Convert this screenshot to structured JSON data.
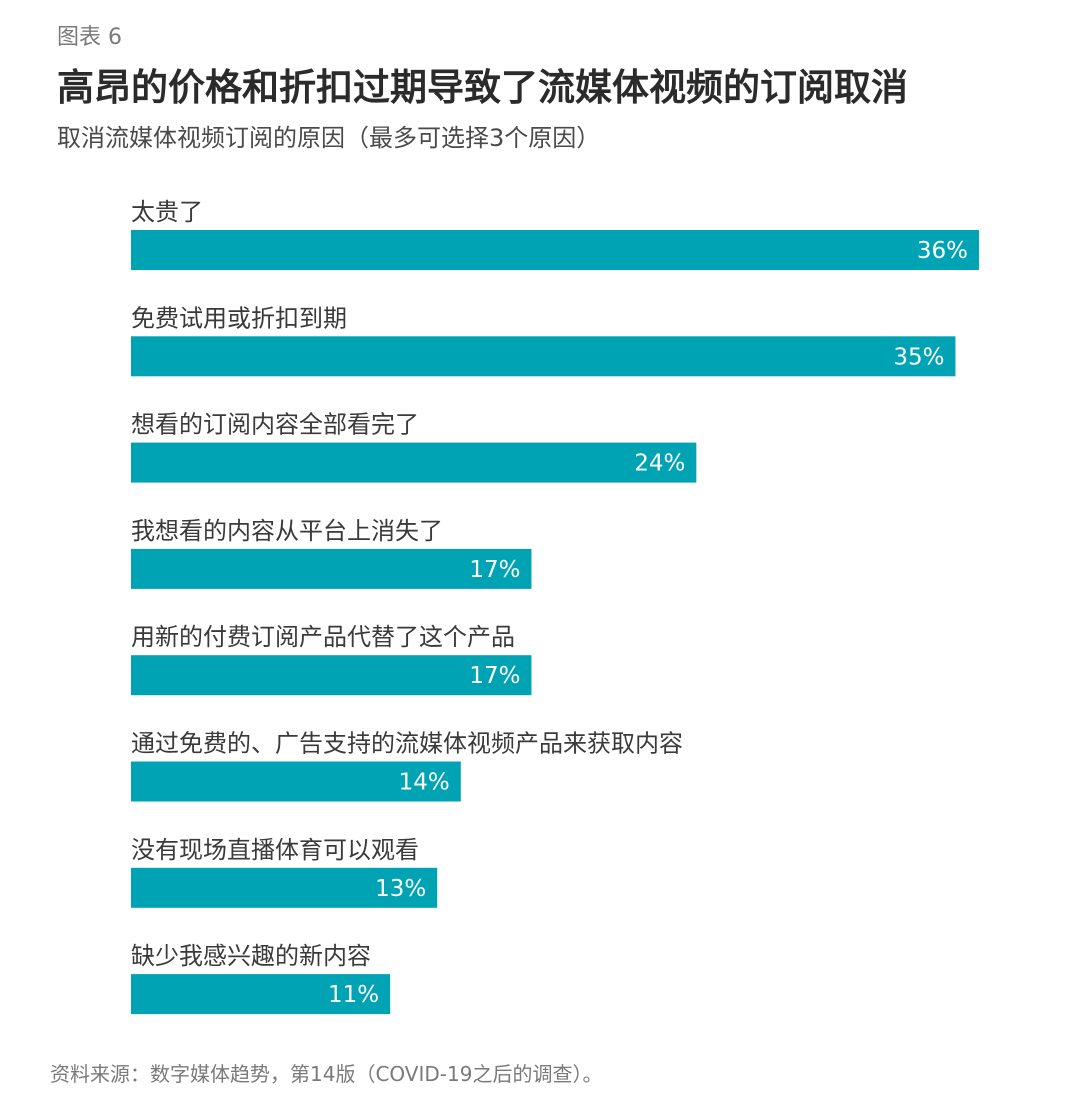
{
  "figure_label": "图表 6",
  "title": "高昂的价格和折扣过期导致了流媒体视频的订阅取消",
  "subtitle": "取消流媒体视频订阅的原因（最多可选择3个原因）",
  "source": "资料来源：数字媒体趋势，第14版（COVID-19之后的调查）。",
  "colors": {
    "bar": "#00A3B4",
    "value_text": "#FFFFFF"
  },
  "chart_data": {
    "type": "bar",
    "orientation": "horizontal",
    "title": "高昂的价格和折扣过期导致了流媒体视频的订阅取消",
    "subtitle": "取消流媒体视频订阅的原因（最多可选择3个原因）",
    "categories": [
      "太贵了",
      "免费试用或折扣到期",
      "想看的订阅内容全部看完了",
      "我想看的内容从平台上消失了",
      "用新的付费订阅产品代替了这个产品",
      "通过免费的、广告支持的流媒体视频产品来获取内容",
      "没有现场直播体育可以观看",
      "缺少我感兴趣的新内容"
    ],
    "values": [
      36,
      35,
      24,
      17,
      17,
      14,
      13,
      11
    ],
    "value_labels": [
      "36%",
      "35%",
      "24%",
      "17%",
      "17%",
      "14%",
      "13%",
      "11%"
    ],
    "xlabel": "",
    "ylabel": "",
    "unit": "%",
    "xlim": [
      0,
      36
    ],
    "grid": false,
    "legend": "none"
  }
}
